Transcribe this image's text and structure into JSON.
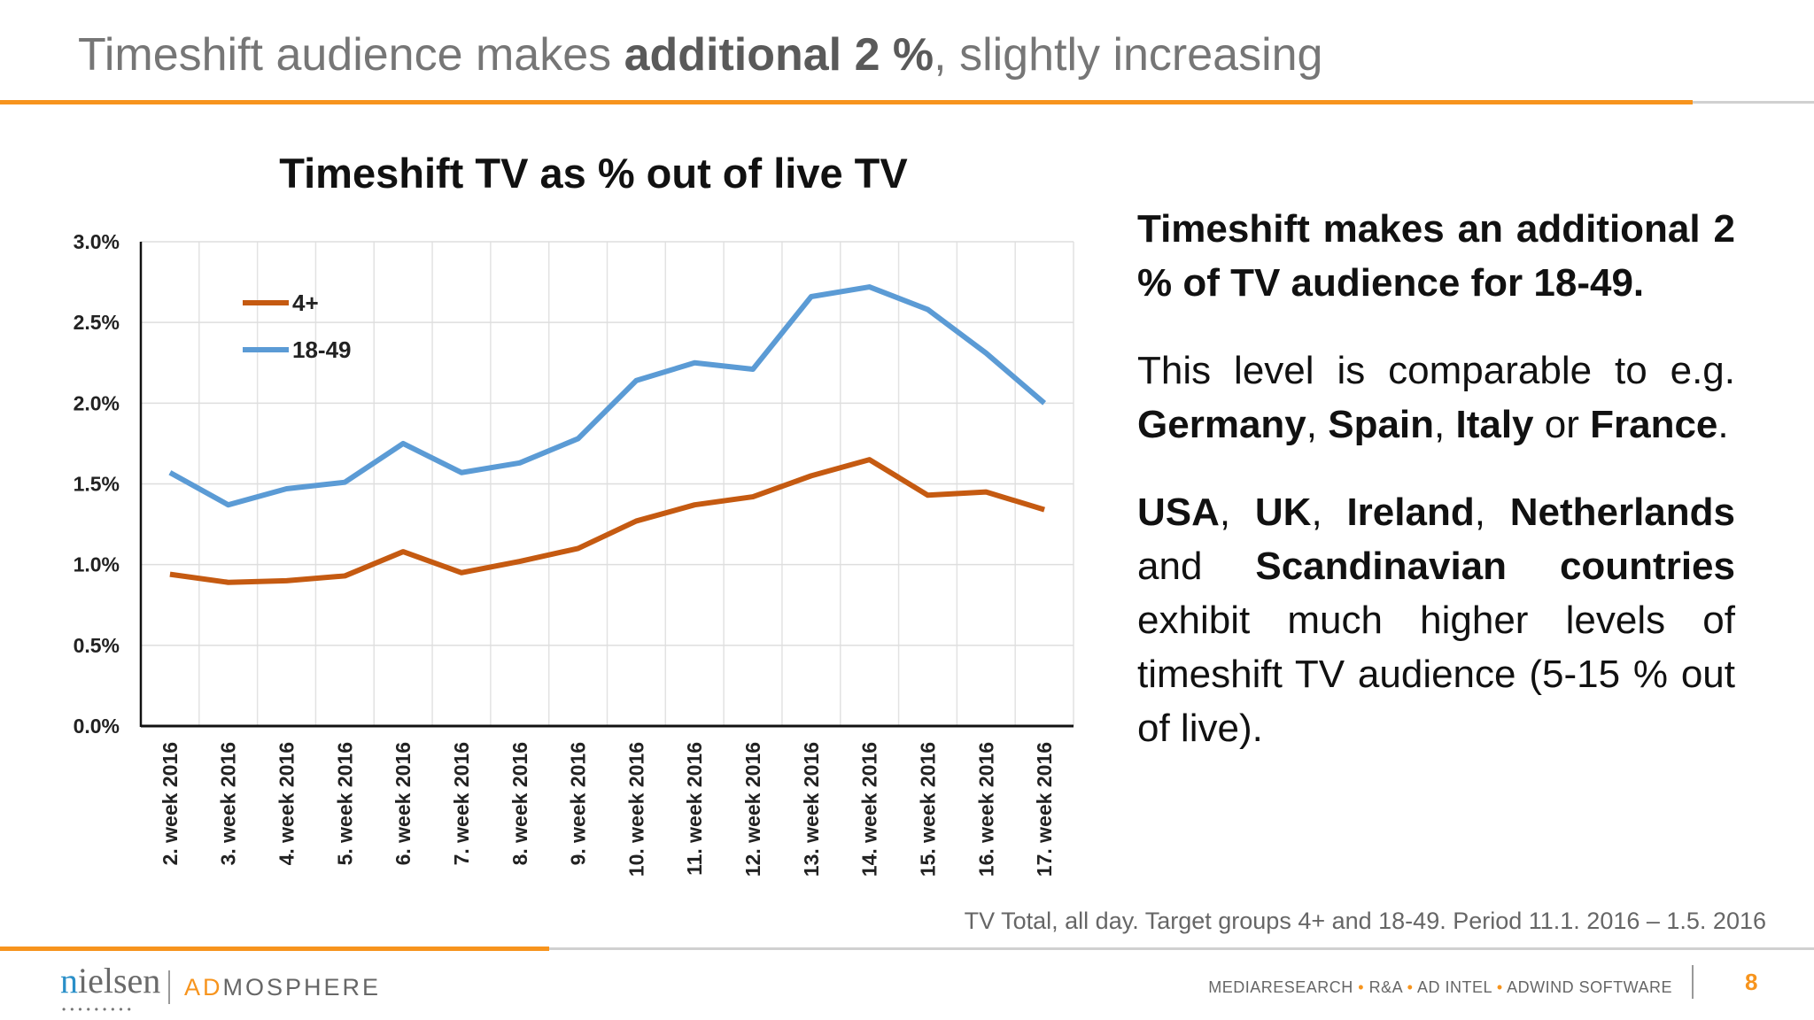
{
  "slide": {
    "title_pre": "Timeshift audience makes ",
    "title_bold": "additional 2 %",
    "title_post": ", slightly increasing",
    "page_number": "8",
    "footnote": "TV Total, all day. Target groups 4+ and 18-49. Period 11.1. 2016 – 1.5. 2016"
  },
  "right_text": {
    "p1": "Timeshift makes an additional 2 % of TV audience for 18-49.",
    "p2_a": "This level is comparable to e.g. ",
    "p2_germany": "Germany",
    "p2_c1": ", ",
    "p2_spain": "Spain",
    "p2_c2": ", ",
    "p2_italy": "Italy",
    "p2_or": " or ",
    "p2_france": "France",
    "p2_end": ".",
    "p3_usa": "USA",
    "p3_c1": ", ",
    "p3_uk": "UK",
    "p3_c2": ", ",
    "p3_ireland": "Ireland",
    "p3_c3": ", ",
    "p3_netherlands": "Netherlands",
    "p3_and": " and ",
    "p3_scand": "Scandinavian countries",
    "p3_rest": " exhibit much higher levels of timeshift TV audience (5-15 % out of live)."
  },
  "footer": {
    "logo_nielsen": "nielsen",
    "logo_admosphere_ad": "AD",
    "logo_admosphere_rest": "MOSPHERE",
    "tagline_items": [
      "MEDIARESEARCH",
      "R&A",
      "AD INTEL",
      "ADWIND SOFTWARE"
    ],
    "accent": "#f7941d"
  },
  "chart_data": {
    "type": "line",
    "title": "Timeshift TV as % out of live TV",
    "xlabel": "",
    "ylabel": "",
    "ylim": [
      0,
      3.0
    ],
    "yticks": [
      "0.0%",
      "0.5%",
      "1.0%",
      "1.5%",
      "2.0%",
      "2.5%",
      "3.0%"
    ],
    "grid": true,
    "legend": "top-left",
    "categories": [
      "2. week 2016",
      "3. week 2016",
      "4. week 2016",
      "5. week 2016",
      "6. week 2016",
      "7. week 2016",
      "8. week 2016",
      "9. week 2016",
      "10. week 2016",
      "11. week 2016",
      "12. week 2016",
      "13. week 2016",
      "14. week 2016",
      "15. week 2016",
      "16. week 2016",
      "17. week 2016"
    ],
    "series": [
      {
        "name": "4+",
        "color": "#c55a11",
        "values": [
          0.94,
          0.89,
          0.9,
          0.93,
          1.08,
          0.95,
          1.02,
          1.1,
          1.27,
          1.37,
          1.42,
          1.55,
          1.65,
          1.43,
          1.45,
          1.34
        ]
      },
      {
        "name": "18-49",
        "color": "#5b9bd5",
        "values": [
          1.57,
          1.37,
          1.47,
          1.51,
          1.75,
          1.57,
          1.63,
          1.78,
          2.14,
          2.25,
          2.21,
          2.66,
          2.72,
          2.58,
          2.31,
          2.0
        ]
      }
    ]
  }
}
